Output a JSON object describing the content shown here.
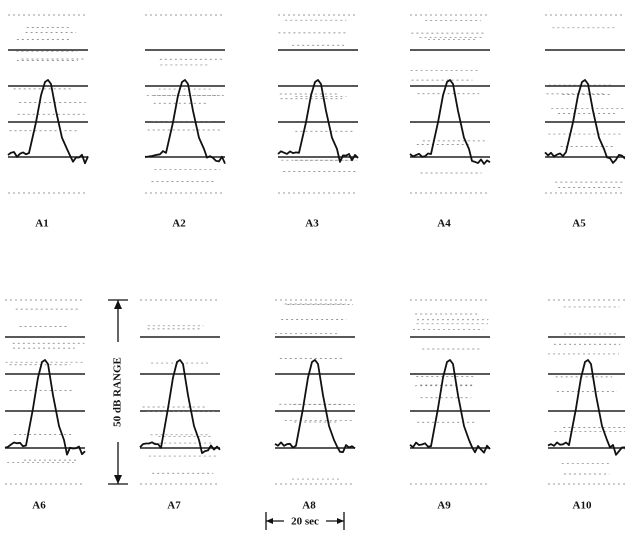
{
  "panels": [
    {
      "label": "A1"
    },
    {
      "label": "A2"
    },
    {
      "label": "A3"
    },
    {
      "label": "A4"
    },
    {
      "label": "A5"
    },
    {
      "label": "A6"
    },
    {
      "label": "A7"
    },
    {
      "label": "A8"
    },
    {
      "label": "A9"
    },
    {
      "label": "A10"
    }
  ],
  "range_label": "50 dB RANGE",
  "time_label": "20 sec"
}
